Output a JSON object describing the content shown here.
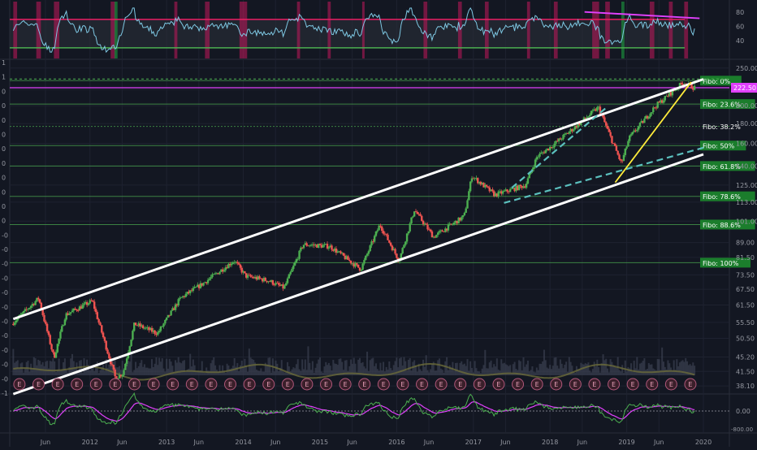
{
  "chart_data": {
    "type": "candlestick",
    "rsi_panel": {
      "axis_ticks": [
        80,
        60,
        40
      ],
      "ylim": [
        15,
        95
      ],
      "bands": {
        "upper": 70,
        "lower": 30
      }
    },
    "price_panel": {
      "log_scale": true,
      "ylim": [
        36.5,
        262
      ],
      "tick_values": [
        38.1,
        41.5,
        45.2,
        50.5,
        55.5,
        61.5,
        67.5,
        73.5,
        81.5,
        89.0,
        101.0,
        113.0,
        125.0,
        140.0,
        160.0,
        180.0,
        200.0,
        220.0,
        250.0
      ],
      "tick_labels": [
        "38.10",
        "41.50",
        "45.20",
        "50.50",
        "55.50",
        "61.50",
        "67.50",
        "73.50",
        "81.50",
        "89.00",
        "101.00",
        "113.00",
        "125.00",
        "140.00",
        "160.00",
        "180.00",
        "200.00",
        "220.00",
        "250.00"
      ],
      "last_price_label": "222.50",
      "last_price": 222.5,
      "magenta_level": 222.5,
      "fibonacci": [
        {
          "label": "Fibo: 0%",
          "price": 232,
          "highlight": true
        },
        {
          "label": "Fibo: 23.6%",
          "price": 202,
          "highlight": true
        },
        {
          "label": "Fibo: 38.2%",
          "price": 177,
          "highlight": false
        },
        {
          "label": "Fibo: 50%",
          "price": 158,
          "highlight": true
        },
        {
          "label": "Fibo: 61.8%",
          "price": 140,
          "highlight": true
        },
        {
          "label": "Fibo: 78.6%",
          "price": 117,
          "highlight": true
        },
        {
          "label": "Fibo: 88.6%",
          "price": 99,
          "highlight": true
        },
        {
          "label": "Fibo: 100%",
          "price": 79,
          "highlight": true
        }
      ],
      "earnings_marker": "E",
      "left_axis_labels": [
        "1",
        "1",
        "0",
        "0",
        "0",
        "0",
        "0",
        "0",
        "0",
        "0",
        "0",
        "0",
        "-0",
        "-0",
        "-0",
        "-0",
        "-0",
        "-0",
        "-0",
        "-0",
        "-0",
        "-0",
        "-0",
        "-1"
      ]
    },
    "macd_panel": {
      "axis_ticks": [
        0.0,
        -800.0
      ],
      "tick_labels": [
        "0.00",
        "-800.00"
      ]
    },
    "x_axis": {
      "labels": [
        "Jun",
        "2012",
        "Jun",
        "2013",
        "Jun",
        "2014",
        "Jun",
        "2015",
        "Jun",
        "2016",
        "Jun",
        "2017",
        "Jun",
        "2018",
        "Jun",
        "2019",
        "Jun",
        "2020"
      ],
      "years": [
        2011.42,
        2012.0,
        2012.42,
        2013.0,
        2013.42,
        2014.0,
        2014.42,
        2015.0,
        2015.42,
        2016.0,
        2016.42,
        2017.0,
        2017.42,
        2018.0,
        2018.42,
        2019.0,
        2019.42,
        2020.0
      ]
    },
    "price_path": [
      [
        2011.0,
        55
      ],
      [
        2011.35,
        64
      ],
      [
        2011.55,
        45
      ],
      [
        2011.7,
        58
      ],
      [
        2012.05,
        63
      ],
      [
        2012.35,
        40
      ],
      [
        2012.45,
        41
      ],
      [
        2012.6,
        55
      ],
      [
        2012.9,
        52
      ],
      [
        2013.2,
        64
      ],
      [
        2013.5,
        70
      ],
      [
        2013.9,
        80
      ],
      [
        2014.05,
        73
      ],
      [
        2014.35,
        71
      ],
      [
        2014.55,
        68
      ],
      [
        2014.8,
        88
      ],
      [
        2015.15,
        87
      ],
      [
        2015.55,
        76
      ],
      [
        2015.8,
        99
      ],
      [
        2016.05,
        80
      ],
      [
        2016.25,
        108
      ],
      [
        2016.5,
        92
      ],
      [
        2016.9,
        104
      ],
      [
        2017.0,
        132
      ],
      [
        2017.3,
        118
      ],
      [
        2017.7,
        125
      ],
      [
        2017.85,
        148
      ],
      [
        2018.05,
        158
      ],
      [
        2018.4,
        180
      ],
      [
        2018.65,
        198
      ],
      [
        2018.95,
        142
      ],
      [
        2019.05,
        165
      ],
      [
        2019.4,
        200
      ],
      [
        2019.75,
        229
      ],
      [
        2019.9,
        222.5
      ]
    ],
    "trend_channel": {
      "lower_line": [
        [
          2011.0,
          36.3
        ],
        [
          2020.0,
          150
        ]
      ],
      "upper_line": [
        [
          2011.0,
          56.6
        ],
        [
          2020.0,
          234
        ]
      ],
      "inner_upper_dashed": [
        [
          2017.5,
          123
        ],
        [
          2018.75,
          199
        ]
      ],
      "inner_lower_dashed": [
        [
          2017.4,
          112.5
        ],
        [
          2020.0,
          156
        ]
      ],
      "yellow_support": [
        [
          2018.85,
          127
        ],
        [
          2019.84,
          230
        ]
      ]
    },
    "rsi_divergence_line": [
      [
        2018.45,
        80.5
      ],
      [
        2019.95,
        71.5
      ]
    ]
  }
}
